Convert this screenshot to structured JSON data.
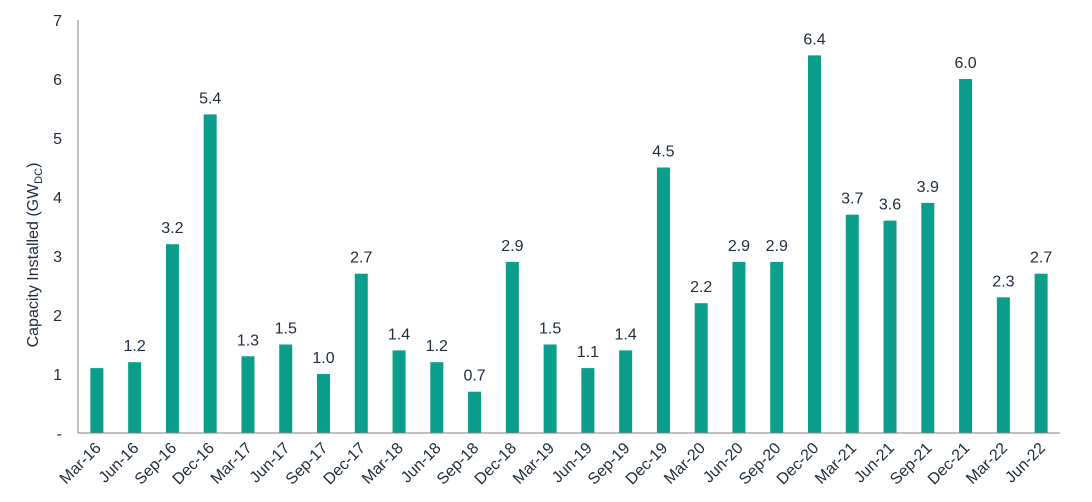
{
  "chart_data": {
    "type": "bar",
    "categories": [
      "Mar-16",
      "Jun-16",
      "Sep-16",
      "Dec-16",
      "Mar-17",
      "Jun-17",
      "Sep-17",
      "Dec-17",
      "Mar-18",
      "Jun-18",
      "Sep-18",
      "Dec-18",
      "Mar-19",
      "Jun-19",
      "Sep-19",
      "Dec-19",
      "Mar-20",
      "Jun-20",
      "Sep-20",
      "Dec-20",
      "Mar-21",
      "Jun-21",
      "Sep-21",
      "Dec-21",
      "Mar-22",
      "Jun-22"
    ],
    "values": [
      1.1,
      1.2,
      3.2,
      5.4,
      1.3,
      1.5,
      1.0,
      2.7,
      1.4,
      1.2,
      0.7,
      2.9,
      1.5,
      1.1,
      1.4,
      4.5,
      2.2,
      2.9,
      2.9,
      6.4,
      3.7,
      3.6,
      3.9,
      6.0,
      2.3,
      2.7
    ],
    "data_labels": [
      "",
      "1.2",
      "3.2",
      "5.4",
      "1.3",
      "1.5",
      "1.0",
      "2.7",
      "1.4",
      "1.2",
      "0.7",
      "2.9",
      "1.5",
      "1.1",
      "1.4",
      "4.5",
      "2.2",
      "2.9",
      "2.9",
      "6.4",
      "3.7",
      "3.6",
      "3.9",
      "6.0",
      "2.3",
      "2.7"
    ],
    "ylabel_main": "Capacity Installed (GW",
    "ylabel_sub": "DC",
    "ylabel_close": ")",
    "ylim": [
      0,
      7
    ],
    "yticks": [
      "-",
      "1",
      "2",
      "3",
      "4",
      "5",
      "6",
      "7"
    ],
    "grid": false,
    "legend": "none",
    "bar_color": "#0b9e8a",
    "text_color": "#1f2d3d",
    "axis_color": "#808080"
  }
}
